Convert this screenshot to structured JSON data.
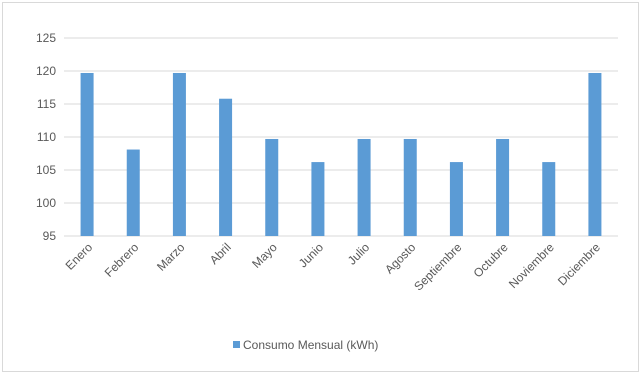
{
  "chart_data": {
    "type": "bar",
    "title": "",
    "xlabel": "",
    "ylabel": "",
    "ylim": [
      95,
      125
    ],
    "yticks": [
      95,
      100,
      105,
      110,
      115,
      120,
      125
    ],
    "grid": true,
    "legend_position": "bottom",
    "categories": [
      "Enero",
      "Febrero",
      "Marzo",
      "Abril",
      "Mayo",
      "Junio",
      "Julio",
      "Agosto",
      "Septiembre",
      "Octubre",
      "Noviembre",
      "Diciembre"
    ],
    "series": [
      {
        "name": "Consumo Mensual (kWh)",
        "color": "#5b9bd5",
        "values": [
          119.7,
          108.1,
          119.7,
          115.8,
          109.7,
          106.2,
          109.7,
          109.7,
          106.2,
          109.7,
          106.2,
          119.7
        ]
      }
    ]
  }
}
